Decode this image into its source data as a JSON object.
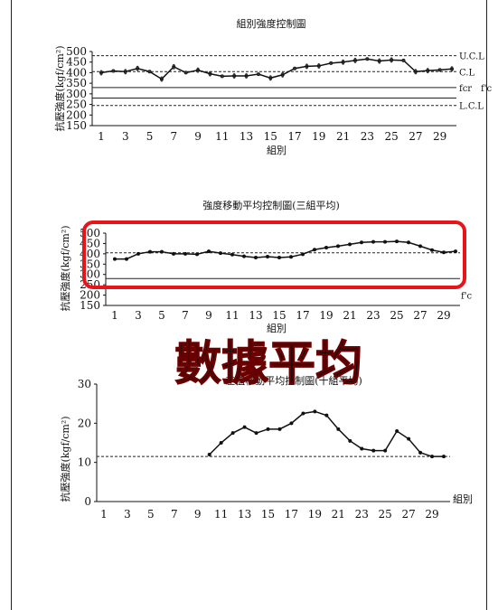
{
  "header": {
    "left": "?????",
    "right": "????"
  },
  "overlay": {
    "caption": "數據平均",
    "box_color": "#e8141b",
    "caption_color": "#e8141b"
  },
  "chart_data": [
    {
      "type": "line",
      "title": "組別強度控制圖",
      "xlabel": "組別",
      "ylabel": "抗壓強度(kgf/cm²)",
      "ylim": [
        150,
        500
      ],
      "yticks": [
        150,
        200,
        250,
        300,
        350,
        400,
        450,
        500
      ],
      "x": [
        1,
        2,
        3,
        4,
        5,
        6,
        7,
        8,
        9,
        10,
        11,
        12,
        13,
        14,
        15,
        16,
        17,
        18,
        19,
        20,
        21,
        22,
        23,
        24,
        25,
        26,
        27,
        28,
        29,
        30
      ],
      "xticks": [
        1,
        3,
        5,
        7,
        9,
        11,
        13,
        15,
        17,
        19,
        21,
        23,
        25,
        27,
        29
      ],
      "series": [
        {
          "name": "",
          "values": [
            400,
            408,
            405,
            420,
            405,
            370,
            428,
            400,
            412,
            395,
            383,
            385,
            385,
            393,
            375,
            390,
            420,
            430,
            432,
            445,
            450,
            458,
            465,
            455,
            460,
            458,
            405,
            410,
            413,
            418
          ]
        }
      ],
      "reference_lines": [
        {
          "label": "U.C.L",
          "value": 480,
          "style": "dashed"
        },
        {
          "label": "C.L",
          "value": 405,
          "style": "dashed"
        },
        {
          "label": "fcr",
          "value": 330,
          "style": "solid"
        },
        {
          "label": "f'c",
          "value": 280,
          "style": "solid"
        },
        {
          "label": "L.C.L",
          "value": 245,
          "style": "dashed"
        }
      ],
      "grid": false
    },
    {
      "type": "line",
      "title": "強度移動平均控制圖(三組平均)",
      "xlabel": "組別",
      "ylabel": "抗壓強度(kgf/cm²)",
      "ylim": [
        150,
        500
      ],
      "yticks": [
        150,
        200,
        250,
        300,
        350,
        400,
        450,
        500
      ],
      "x": [
        1,
        2,
        3,
        4,
        5,
        6,
        7,
        8,
        9,
        10,
        11,
        12,
        13,
        14,
        15,
        16,
        17,
        18,
        19,
        20,
        21,
        22,
        23,
        24,
        25,
        26,
        27,
        28,
        29,
        30
      ],
      "xticks": [
        1,
        3,
        5,
        7,
        9,
        11,
        13,
        15,
        17,
        19,
        21,
        23,
        25,
        27,
        29
      ],
      "series": [
        {
          "name": "",
          "values": [
            375,
            375,
            400,
            410,
            410,
            400,
            400,
            398,
            412,
            403,
            396,
            388,
            382,
            386,
            382,
            385,
            398,
            420,
            430,
            437,
            446,
            455,
            458,
            458,
            460,
            455,
            437,
            418,
            407,
            412
          ]
        }
      ],
      "reference_lines": [
        {
          "label": "",
          "value": 405,
          "style": "dashed"
        },
        {
          "label": "f'c",
          "value": 280,
          "style": "solid"
        }
      ],
      "grid": false
    },
    {
      "type": "line",
      "title": "差值移動平均控制圖(十組平均)",
      "xlabel": "組別",
      "ylabel": "抗壓強度(kgf/cm²)",
      "ylim": [
        0,
        30
      ],
      "yticks": [
        0,
        10,
        20,
        30
      ],
      "x": [
        10,
        11,
        12,
        13,
        14,
        15,
        16,
        17,
        18,
        19,
        20,
        21,
        22,
        23,
        24,
        25,
        26,
        27,
        28,
        29,
        30
      ],
      "xticks": [
        1,
        3,
        5,
        7,
        9,
        11,
        13,
        15,
        17,
        19,
        21,
        23,
        25,
        27,
        29
      ],
      "series": [
        {
          "name": "",
          "values": [
            12,
            15,
            17.5,
            19,
            17.5,
            18.5,
            18.5,
            20,
            22.5,
            23,
            22,
            18.5,
            15.5,
            13.5,
            13,
            13,
            18,
            16,
            12.5,
            11.5,
            11.5
          ]
        }
      ],
      "reference_lines": [
        {
          "label": "",
          "value": 11.5,
          "style": "dashed"
        }
      ],
      "grid": false
    }
  ]
}
